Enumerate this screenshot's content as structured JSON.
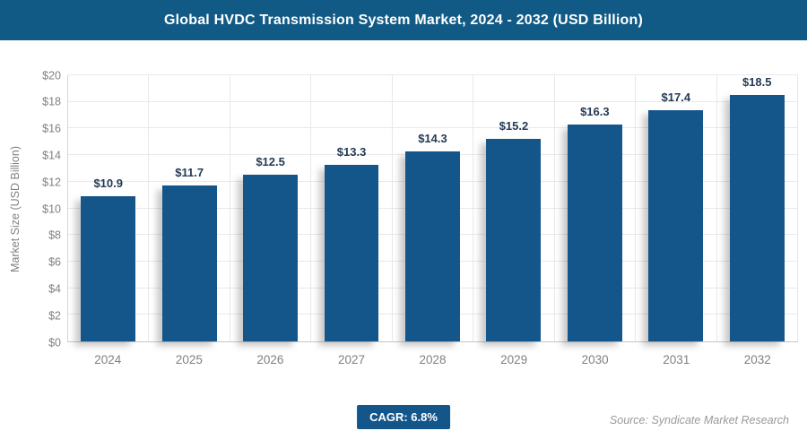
{
  "header": {
    "title": "Global HVDC Transmission System Market, 2024 - 2032 (USD Billion)",
    "bg_color": "#115A85",
    "text_color": "#FFFFFF"
  },
  "chart_data": {
    "type": "bar",
    "title": "Global HVDC Transmission System Market, 2024 - 2032 (USD Billion)",
    "xlabel": "",
    "ylabel": "Market Size (USD Billion)",
    "categories": [
      "2024",
      "2025",
      "2026",
      "2027",
      "2028",
      "2029",
      "2030",
      "2031",
      "2032"
    ],
    "values": [
      10.9,
      11.7,
      12.5,
      13.3,
      14.3,
      15.2,
      16.3,
      17.4,
      18.5
    ],
    "bar_labels": [
      "$10.9",
      "$11.7",
      "$12.5",
      "$13.3",
      "$14.3",
      "$15.2",
      "$16.3",
      "$17.4",
      "$18.5"
    ],
    "ylim": [
      0,
      20
    ],
    "ytick_step": 2,
    "ytick_labels": [
      "$0",
      "$2",
      "$4",
      "$6",
      "$8",
      "$10",
      "$12",
      "$14",
      "$16",
      "$18",
      "$20"
    ],
    "grid": true,
    "legend": false,
    "bar_color": "#15568A",
    "bar_label_color": "#253B56",
    "axis_text_color": "#808080"
  },
  "footer": {
    "cagr_badge": "CAGR: 6.8%",
    "badge_bg": "#15568A",
    "source": "Source: Syndicate Market Research"
  }
}
